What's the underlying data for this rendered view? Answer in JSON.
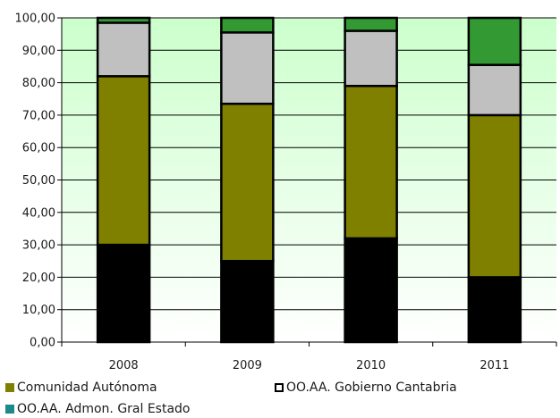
{
  "chart_data": {
    "type": "bar",
    "stacked": true,
    "categories": [
      "2008",
      "2009",
      "2010",
      "2011"
    ],
    "series": [
      {
        "key": "s1",
        "values": [
          30,
          25,
          32,
          20
        ],
        "color": "#000000"
      },
      {
        "key": "s2",
        "name": "Comunidad Autónoma",
        "values": [
          52,
          48.5,
          47,
          50
        ],
        "color": "#808000"
      },
      {
        "key": "s3",
        "name": "OO.AA. Gobierno Cantabria",
        "values": [
          16.5,
          22,
          17,
          15.5
        ],
        "color": "#c0c0c0"
      },
      {
        "key": "s4",
        "name": "OO.AA. Admon. Gral Estado",
        "values": [
          1.5,
          4.5,
          4,
          14.5
        ],
        "color": "#339933"
      }
    ],
    "yticks": [
      "0,00",
      "10,00",
      "20,00",
      "30,00",
      "40,00",
      "50,00",
      "60,00",
      "70,00",
      "80,00",
      "90,00",
      "100,00"
    ],
    "ylim": [
      0,
      100
    ],
    "grid": true,
    "plot_background": [
      "#ffffff",
      "#ccffcc"
    ],
    "legend_position": "bottom"
  }
}
